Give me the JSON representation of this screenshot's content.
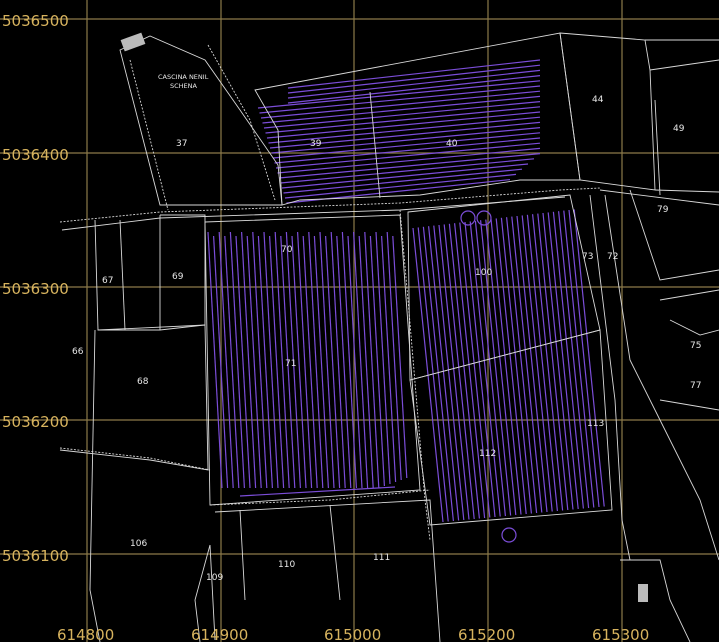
{
  "axes": {
    "northing_labels": [
      "5036500",
      "5036400",
      "5036300",
      "5036200",
      "5036100"
    ],
    "easting_labels": [
      "614800",
      "614900",
      "615000",
      "615200",
      "615300"
    ]
  },
  "place_name": {
    "line1": "CASCINA NENIL",
    "line2": "SCHENA"
  },
  "parcels": [
    {
      "id": "37",
      "label": "37"
    },
    {
      "id": "39",
      "label": "39"
    },
    {
      "id": "40",
      "label": "40"
    },
    {
      "id": "44",
      "label": "44"
    },
    {
      "id": "49",
      "label": "49"
    },
    {
      "id": "79",
      "label": "79"
    },
    {
      "id": "70",
      "label": "70"
    },
    {
      "id": "67",
      "label": "67"
    },
    {
      "id": "69",
      "label": "69"
    },
    {
      "id": "100",
      "label": "100"
    },
    {
      "id": "73",
      "label": "73"
    },
    {
      "id": "72",
      "label": "72"
    },
    {
      "id": "66",
      "label": "66"
    },
    {
      "id": "68",
      "label": "68"
    },
    {
      "id": "71",
      "label": "71"
    },
    {
      "id": "75",
      "label": "75"
    },
    {
      "id": "77",
      "label": "77"
    },
    {
      "id": "113",
      "label": "113"
    },
    {
      "id": "112",
      "label": "112"
    },
    {
      "id": "106",
      "label": "106"
    },
    {
      "id": "110",
      "label": "110"
    },
    {
      "id": "111",
      "label": "111"
    },
    {
      "id": "109",
      "label": "109"
    }
  ],
  "colors": {
    "background": "#000000",
    "grid": "#8c7a4a",
    "axis_text": "#d7b35e",
    "parcel_lines": "#d8d8d8",
    "tracks": "#7b4dd8"
  }
}
